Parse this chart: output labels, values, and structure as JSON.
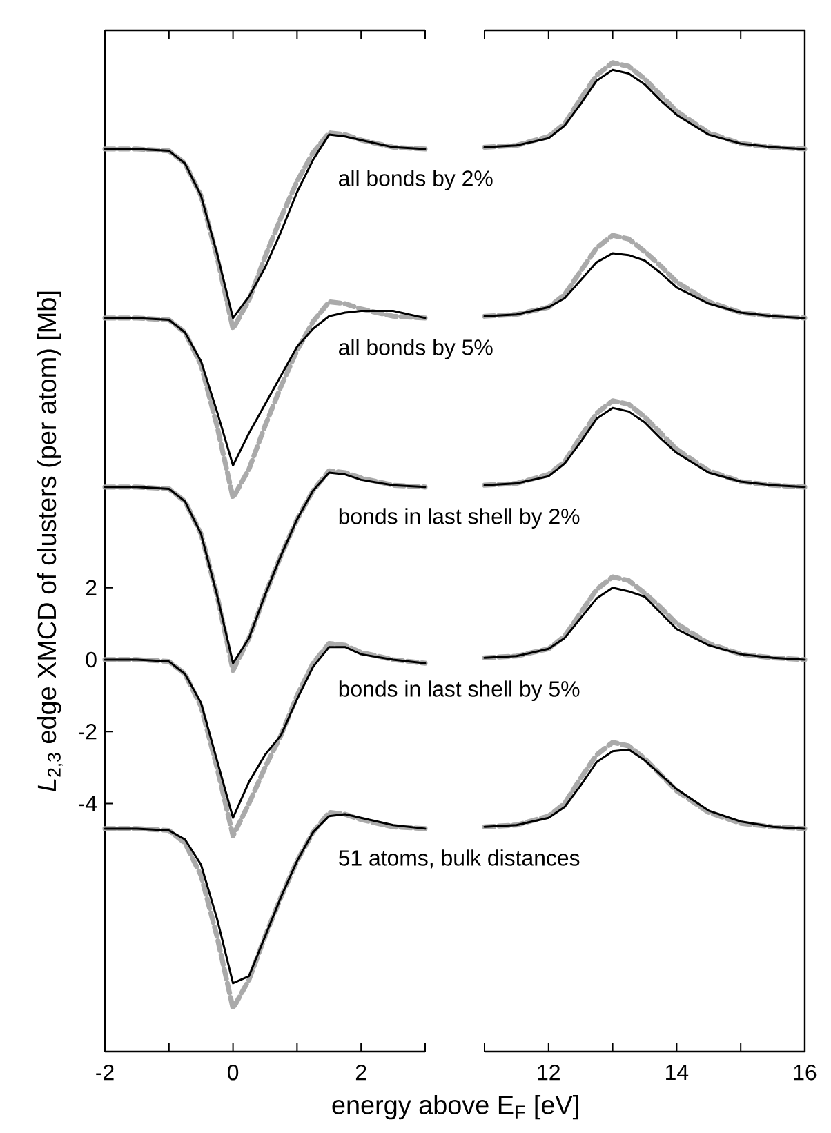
{
  "chart_data": [
    {
      "type": "line",
      "ylabel": "*L*$_{2,3}$ edge XMCD of clusters (per atom)   [Mb]",
      "xlabel": "energy above E$_{F}$   [eV]",
      "xlim": [
        -2,
        3
      ],
      "ylim": [
        -10.9,
        17.5
      ],
      "xticks": [
        -2,
        {
          "value": -1,
          "label": null
        },
        0,
        {
          "value": 1,
          "label": null
        },
        2,
        {
          "value": 3,
          "label": null
        }
      ],
      "yticks": [
        -4,
        -2,
        0,
        2
      ],
      "x": [
        -2,
        -1.5,
        -1,
        -0.75,
        -0.5,
        -0.25,
        0,
        0.25,
        0.5,
        0.75,
        1,
        1.25,
        1.5,
        1.75,
        2,
        2.5,
        3
      ],
      "series": [
        {
          "color": "#aaaaaa",
          "line_style": "dashed",
          "values": [
            14.2,
            14.2,
            14.15,
            13.8,
            12.9,
            11.2,
            9.2,
            10.0,
            11.2,
            12.3,
            13.3,
            14.1,
            14.65,
            14.6,
            14.45,
            14.25,
            14.2
          ]
        },
        {
          "color": "#000000",
          "line_style": "solid",
          "values": [
            14.2,
            14.2,
            14.15,
            13.8,
            12.9,
            11.3,
            9.5,
            10.1,
            10.9,
            11.9,
            13.0,
            13.9,
            14.6,
            14.55,
            14.45,
            14.25,
            14.2
          ]
        },
        {
          "color": "#aaaaaa",
          "line_style": "dashed",
          "values": [
            9.5,
            9.5,
            9.45,
            9.1,
            8.2,
            6.5,
            4.5,
            5.3,
            6.5,
            7.6,
            8.6,
            9.4,
            9.95,
            9.9,
            9.75,
            9.55,
            9.5
          ]
        },
        {
          "color": "#000000",
          "line_style": "solid",
          "values": [
            9.5,
            9.5,
            9.45,
            9.1,
            8.3,
            6.9,
            5.4,
            6.3,
            7.1,
            7.9,
            8.7,
            9.2,
            9.55,
            9.65,
            9.7,
            9.7,
            9.5
          ]
        },
        {
          "color": "#aaaaaa",
          "line_style": "dashed",
          "values": [
            4.8,
            4.8,
            4.75,
            4.4,
            3.5,
            1.8,
            -0.3,
            0.6,
            1.8,
            2.9,
            3.9,
            4.7,
            5.25,
            5.2,
            5.05,
            4.85,
            4.8
          ]
        },
        {
          "color": "#000000",
          "line_style": "solid",
          "values": [
            4.8,
            4.8,
            4.75,
            4.4,
            3.5,
            1.8,
            -0.1,
            0.6,
            1.8,
            2.9,
            3.9,
            4.7,
            5.2,
            5.15,
            5.0,
            4.85,
            4.8
          ]
        },
        {
          "color": "#aaaaaa",
          "line_style": "dashed",
          "values": [
            0,
            0,
            -0.05,
            -0.4,
            -1.3,
            -3.0,
            -4.9,
            -4.0,
            -3.0,
            -2.1,
            -1.0,
            -0.1,
            0.45,
            0.4,
            0.2,
            0,
            -0.1
          ]
        },
        {
          "color": "#000000",
          "line_style": "solid",
          "values": [
            0,
            0,
            -0.05,
            -0.4,
            -1.2,
            -2.8,
            -4.4,
            -3.4,
            -2.65,
            -2.1,
            -1.1,
            -0.2,
            0.35,
            0.35,
            0.15,
            0,
            -0.1
          ]
        },
        {
          "color": "#aaaaaa",
          "line_style": "dashed",
          "values": [
            -4.7,
            -4.7,
            -4.75,
            -5.1,
            -6.0,
            -7.7,
            -9.7,
            -8.9,
            -7.7,
            -6.6,
            -5.6,
            -4.8,
            -4.25,
            -4.3,
            -4.45,
            -4.65,
            -4.7
          ]
        },
        {
          "color": "#000000",
          "line_style": "solid",
          "values": [
            -4.7,
            -4.7,
            -4.75,
            -5.0,
            -5.7,
            -7.2,
            -9.0,
            -8.8,
            -7.7,
            -6.6,
            -5.6,
            -4.8,
            -4.35,
            -4.3,
            -4.4,
            -4.6,
            -4.7
          ]
        }
      ],
      "annotations": [
        "all bonds by 2%",
        "all bonds by 5%",
        "bonds in last shell by 2%",
        "bonds in last shell by 5%",
        "51 atoms, bulk distances"
      ]
    },
    {
      "type": "line",
      "xlim": [
        11,
        16
      ],
      "ylim": [
        -10.9,
        17.5
      ],
      "tick_labels": "x",
      "xticks": [
        {
          "value": 11,
          "label": null
        },
        12,
        {
          "value": 13,
          "label": null
        },
        14,
        {
          "value": 15,
          "label": null
        },
        16
      ],
      "x": [
        11,
        11.5,
        12,
        12.25,
        12.5,
        12.75,
        13,
        13.25,
        13.5,
        13.75,
        14,
        14.5,
        15,
        15.5,
        16
      ],
      "series": [
        {
          "color": "#aaaaaa",
          "line_style": "dashed",
          "values": [
            14.25,
            14.3,
            14.55,
            14.9,
            15.6,
            16.25,
            16.6,
            16.5,
            16.15,
            15.7,
            15.25,
            14.65,
            14.35,
            14.25,
            14.2
          ]
        },
        {
          "color": "#000000",
          "line_style": "solid",
          "values": [
            14.25,
            14.3,
            14.5,
            14.85,
            15.45,
            16.1,
            16.4,
            16.3,
            16.0,
            15.55,
            15.15,
            14.6,
            14.35,
            14.25,
            14.2
          ]
        },
        {
          "color": "#aaaaaa",
          "line_style": "dashed",
          "values": [
            9.55,
            9.6,
            9.8,
            10.15,
            10.8,
            11.45,
            11.8,
            11.7,
            11.35,
            10.95,
            10.5,
            9.95,
            9.65,
            9.55,
            9.5
          ]
        },
        {
          "color": "#000000",
          "line_style": "solid",
          "values": [
            9.55,
            9.6,
            9.8,
            10.05,
            10.55,
            11.05,
            11.3,
            11.25,
            11.1,
            10.75,
            10.35,
            9.9,
            9.65,
            9.55,
            9.5
          ]
        },
        {
          "color": "#aaaaaa",
          "line_style": "dashed",
          "values": [
            4.85,
            4.9,
            5.15,
            5.5,
            6.2,
            6.85,
            7.2,
            7.1,
            6.75,
            6.3,
            5.85,
            5.25,
            4.95,
            4.85,
            4.8
          ]
        },
        {
          "color": "#000000",
          "line_style": "solid",
          "values": [
            4.85,
            4.9,
            5.1,
            5.45,
            6.05,
            6.7,
            7.0,
            6.9,
            6.6,
            6.15,
            5.75,
            5.2,
            4.95,
            4.85,
            4.8
          ]
        },
        {
          "color": "#aaaaaa",
          "line_style": "dashed",
          "values": [
            0.05,
            0.1,
            0.3,
            0.65,
            1.3,
            1.95,
            2.3,
            2.2,
            1.85,
            1.45,
            1.0,
            0.45,
            0.15,
            0.05,
            0
          ]
        },
        {
          "color": "#000000",
          "line_style": "solid",
          "values": [
            0.05,
            0.1,
            0.3,
            0.6,
            1.15,
            1.7,
            2.0,
            1.9,
            1.75,
            1.3,
            0.85,
            0.4,
            0.15,
            0.05,
            0
          ]
        },
        {
          "color": "#aaaaaa",
          "line_style": "dashed",
          "values": [
            -4.65,
            -4.6,
            -4.35,
            -4.0,
            -3.3,
            -2.65,
            -2.3,
            -2.4,
            -2.75,
            -3.2,
            -3.65,
            -4.25,
            -4.55,
            -4.65,
            -4.7
          ]
        },
        {
          "color": "#000000",
          "line_style": "solid",
          "values": [
            -4.65,
            -4.6,
            -4.4,
            -4.1,
            -3.5,
            -2.85,
            -2.55,
            -2.5,
            -2.8,
            -3.2,
            -3.6,
            -4.2,
            -4.5,
            -4.65,
            -4.7
          ]
        }
      ]
    }
  ]
}
